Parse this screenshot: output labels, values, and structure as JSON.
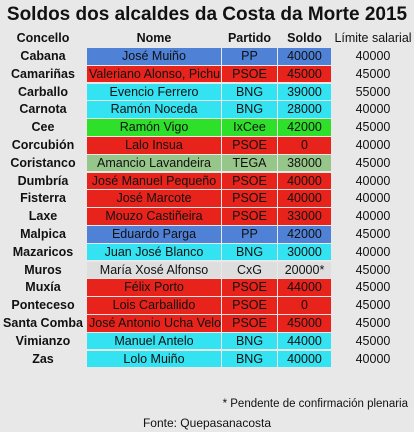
{
  "chart_data": {
    "type": "table",
    "title": "Soldos dos alcaldes da Costa da Morte 2015",
    "columns": [
      "Concello",
      "Nome",
      "Partido",
      "Soldo",
      "Límite salarial"
    ],
    "rows": [
      {
        "concello": "Cabana",
        "nome": "José Muiño",
        "partido": "PP",
        "soldo": "40000",
        "limite": "40000",
        "color": "#4f81d6"
      },
      {
        "concello": "Camariñas",
        "nome": "Valeriano Alonso, Pichurri",
        "partido": "PSOE",
        "soldo": "45000",
        "limite": "45000",
        "color": "#e8231b"
      },
      {
        "concello": "Carballo",
        "nome": "Evencio Ferrero",
        "partido": "BNG",
        "soldo": "39000",
        "limite": "55000",
        "color": "#33e3f2"
      },
      {
        "concello": "Carnota",
        "nome": "Ramón Noceda",
        "partido": "BNG",
        "soldo": "28000",
        "limite": "40000",
        "color": "#33e3f2"
      },
      {
        "concello": "Cee",
        "nome": "Ramón Vigo",
        "partido": "IxCee",
        "soldo": "42000",
        "limite": "45000",
        "color": "#2ee02a"
      },
      {
        "concello": "Corcubión",
        "nome": "Lalo Insua",
        "partido": "PSOE",
        "soldo": "0",
        "limite": "40000",
        "color": "#e8231b"
      },
      {
        "concello": "Coristanco",
        "nome": "Amancio Lavandeira",
        "partido": "TEGA",
        "soldo": "38000",
        "limite": "45000",
        "color": "#97c68a"
      },
      {
        "concello": "Dumbría",
        "nome": "José Manuel Pequeño",
        "partido": "PSOE",
        "soldo": "40000",
        "limite": "40000",
        "color": "#e8231b"
      },
      {
        "concello": "Fisterra",
        "nome": "José Marcote",
        "partido": "PSOE",
        "soldo": "40000",
        "limite": "40000",
        "color": "#e8231b"
      },
      {
        "concello": "Laxe",
        "nome": "Mouzo Castiñeira",
        "partido": "PSOE",
        "soldo": "33000",
        "limite": "40000",
        "color": "#e8231b"
      },
      {
        "concello": "Malpica",
        "nome": "Eduardo Parga",
        "partido": "PP",
        "soldo": "42000",
        "limite": "45000",
        "color": "#4f81d6"
      },
      {
        "concello": "Mazaricos",
        "nome": "Juan José Blanco",
        "partido": "BNG",
        "soldo": "30000",
        "limite": "40000",
        "color": "#33e3f2"
      },
      {
        "concello": "Muros",
        "nome": "María Xosé Alfonso",
        "partido": "CxG",
        "soldo": "20000*",
        "limite": "45000",
        "color": "#dedede"
      },
      {
        "concello": "Muxía",
        "nome": "Félix Porto",
        "partido": "PSOE",
        "soldo": "44000",
        "limite": "45000",
        "color": "#e8231b"
      },
      {
        "concello": "Ponteceso",
        "nome": "Lois Carballido",
        "partido": "PSOE",
        "soldo": "0",
        "limite": "45000",
        "color": "#e8231b"
      },
      {
        "concello": "Santa Comba",
        "nome": "José Antonio Ucha Velo",
        "partido": "PSOE",
        "soldo": "45000",
        "limite": "45000",
        "color": "#e8231b"
      },
      {
        "concello": "Vimianzo",
        "nome": "Manuel Antelo",
        "partido": "BNG",
        "soldo": "44000",
        "limite": "45000",
        "color": "#33e3f2"
      },
      {
        "concello": "Zas",
        "nome": "Lolo Muiño",
        "partido": "BNG",
        "soldo": "40000",
        "limite": "40000",
        "color": "#33e3f2"
      }
    ],
    "footnote": "* Pendente de confirmación plenaria",
    "source": "Fonte: Quepasanacosta"
  }
}
